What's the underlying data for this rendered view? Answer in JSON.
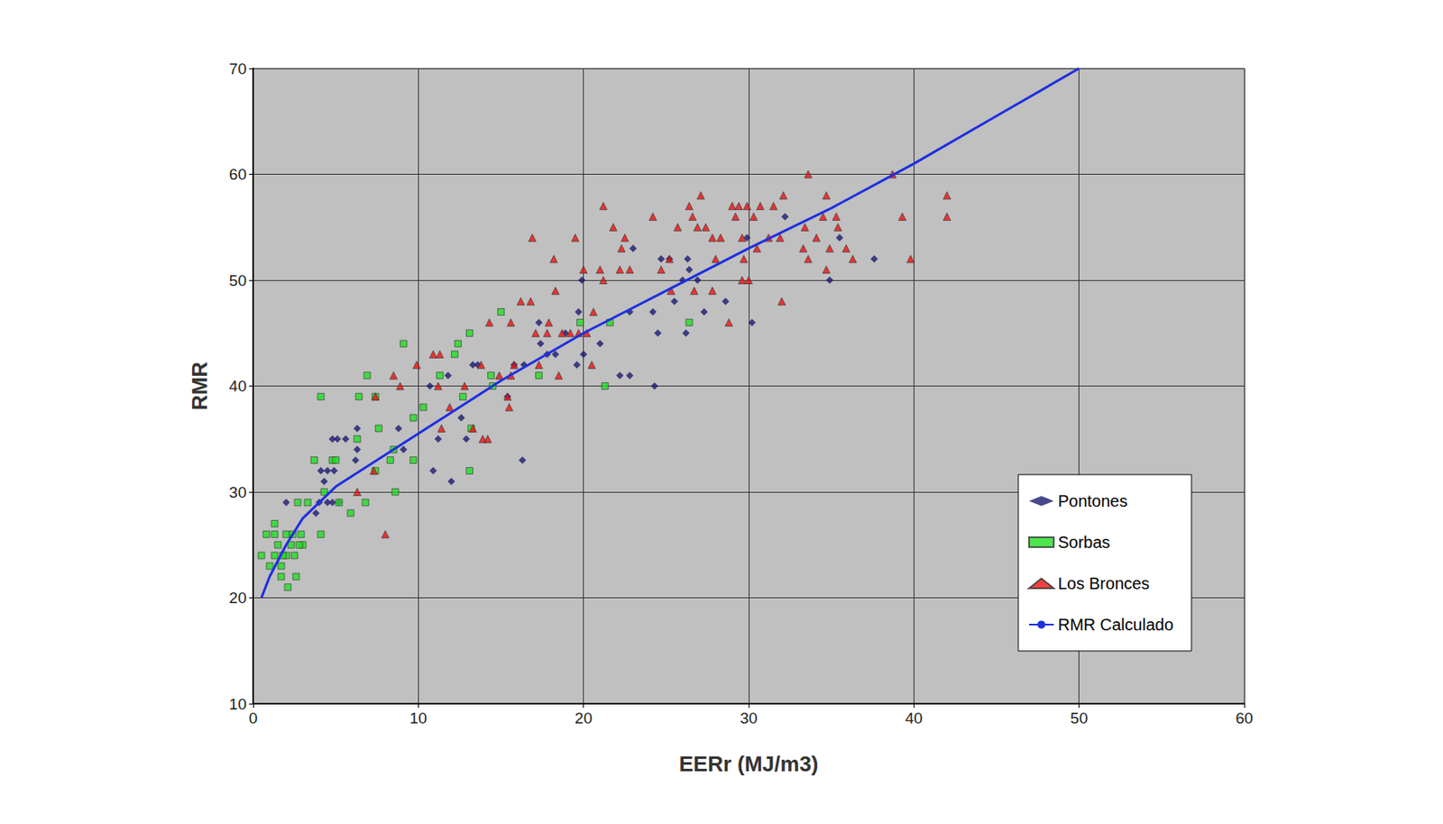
{
  "chart_data": {
    "type": "scatter",
    "x_label": "EERr (MJ/m3)",
    "y_label": "RMR",
    "xlim": [
      0,
      60
    ],
    "xticks": [
      0,
      10,
      20,
      30,
      40,
      50,
      60
    ],
    "ylim": [
      10,
      70
    ],
    "yticks": [
      10,
      20,
      30,
      40,
      50,
      60,
      70
    ],
    "grid": true,
    "legend": "lower right",
    "series": [
      {
        "name": "Pontones",
        "color": "#1a1a6e",
        "marker": "diamond",
        "x": [
          2,
          3.8,
          4,
          4.1,
          4.3,
          4.5,
          4.5,
          4.8,
          4.8,
          4.9,
          5.1,
          5.2,
          5.6,
          6.2,
          6.3,
          6.3,
          8.8,
          9.1,
          10.7,
          10.9,
          11.2,
          11.8,
          12,
          12.6,
          12.9,
          13.3,
          13.6,
          15.4,
          16.3,
          16.4,
          17.3,
          17.8,
          18.3,
          18.9,
          19.6,
          19.7,
          19.9,
          20,
          21,
          22.2,
          22.8,
          22.8,
          23,
          24.2,
          24.3,
          24.5,
          24.7,
          25.5,
          25.2,
          26,
          26.2,
          26.3,
          26.4,
          26.9,
          27.3,
          28.6,
          29.9,
          30.2,
          32.2,
          34.9,
          35.5,
          37.6,
          17.4,
          15.8
        ],
        "values": [
          29,
          28,
          29,
          32,
          31,
          32,
          29,
          29,
          35,
          32,
          35,
          29,
          35,
          33,
          36,
          34,
          36,
          34,
          40,
          32,
          35,
          41,
          31,
          37,
          35,
          42,
          42,
          39,
          33,
          42,
          46,
          43,
          43,
          45,
          42,
          47,
          50,
          43,
          44,
          41,
          47,
          41,
          53,
          47,
          40,
          45,
          52,
          48,
          52,
          50,
          45,
          52,
          51,
          50,
          47,
          48,
          54,
          46,
          56,
          50,
          54,
          52,
          44,
          42
        ]
      },
      {
        "name": "Sorbas",
        "color": "#22dd22",
        "marker": "square",
        "x": [
          0.5,
          0.8,
          1.3,
          1.3,
          1.3,
          1.5,
          1.7,
          1.7,
          2,
          2,
          2.1,
          2.3,
          2.4,
          2.5,
          2.6,
          2.7,
          2.9,
          3,
          3.3,
          3.7,
          4.1,
          4.1,
          4.3,
          4.8,
          5,
          5.2,
          5.9,
          6.3,
          6.4,
          6.8,
          6.9,
          7.4,
          7.4,
          7.6,
          8.3,
          8.5,
          8.6,
          9.1,
          9.7,
          9.7,
          10.3,
          11.3,
          12.2,
          12.4,
          12.7,
          13.1,
          13.2,
          13.1,
          14.4,
          14.5,
          15,
          17.3,
          19.8,
          21.3,
          21.6,
          26.4,
          1.8,
          2.8,
          1
        ],
        "values": [
          24,
          26,
          27,
          26,
          24,
          25,
          22,
          23,
          24,
          26,
          21,
          25,
          26,
          24,
          22,
          29,
          26,
          25,
          29,
          33,
          39,
          26,
          30,
          33,
          33,
          29,
          28,
          35,
          39,
          29,
          41,
          39,
          32,
          36,
          33,
          34,
          30,
          44,
          37,
          33,
          38,
          41,
          43,
          44,
          39,
          45,
          36,
          32,
          41,
          40,
          47,
          41,
          46,
          40,
          46,
          46,
          24,
          25,
          23
        ]
      },
      {
        "name": "Los Bronces",
        "color": "#ee1111",
        "marker": "triangle",
        "x": [
          6.3,
          7.3,
          7.4,
          8,
          8.5,
          8.9,
          9.9,
          10.9,
          11.2,
          11.3,
          11.4,
          11.9,
          12.8,
          13.3,
          13.8,
          13.9,
          14.2,
          14.3,
          14.9,
          15.4,
          15.5,
          15.6,
          15.6,
          15.8,
          16.2,
          16.9,
          16.8,
          17.1,
          17.3,
          17.8,
          17.9,
          18.2,
          18.3,
          18.5,
          18.7,
          19.2,
          19.5,
          19.7,
          20,
          20.2,
          20.5,
          20.6,
          21,
          21.2,
          21.2,
          21.8,
          22.2,
          22.3,
          22.5,
          22.8,
          24.2,
          24.7,
          25.2,
          25.3,
          25.7,
          26.4,
          26.6,
          26.7,
          27.1,
          27.4,
          27.8,
          28,
          28.3,
          28.8,
          29,
          29.2,
          29.4,
          29.6,
          29.6,
          29.7,
          29.9,
          30,
          30.3,
          30.5,
          30.7,
          31.2,
          31.5,
          31.9,
          32,
          32.1,
          33.3,
          33.6,
          33.4,
          33.6,
          34.1,
          34.5,
          34.7,
          34.7,
          34.9,
          35.3,
          35.4,
          35.9,
          36.3,
          38.7,
          39.3,
          39.8,
          42,
          42,
          26.9,
          27.8
        ],
        "values": [
          30,
          32,
          39,
          26,
          41,
          40,
          42,
          43,
          40,
          43,
          36,
          38,
          40,
          36,
          42,
          35,
          35,
          46,
          41,
          39,
          38,
          41,
          46,
          42,
          48,
          54,
          48,
          45,
          42,
          45,
          46,
          52,
          49,
          41,
          45,
          45,
          54,
          45,
          51,
          45,
          42,
          47,
          51,
          57,
          50,
          55,
          51,
          53,
          54,
          51,
          56,
          51,
          52,
          49,
          55,
          57,
          56,
          49,
          58,
          55,
          49,
          52,
          54,
          46,
          57,
          56,
          57,
          50,
          54,
          52,
          57,
          50,
          56,
          53,
          57,
          54,
          57,
          54,
          48,
          58,
          53,
          60,
          55,
          52,
          54,
          56,
          58,
          51,
          53,
          56,
          55,
          53,
          52,
          60,
          56,
          52,
          58,
          56,
          55,
          54
        ]
      },
      {
        "name": "RMR Calculado",
        "color": "#1f2fe0",
        "type": "line",
        "line_style": "solid",
        "x": [
          0.5,
          1,
          2,
          3,
          5,
          10,
          15,
          20,
          25,
          30,
          35,
          40,
          45,
          50
        ],
        "values": [
          20,
          22,
          25,
          27.5,
          30.5,
          35.5,
          40.5,
          45,
          49,
          53,
          56.8,
          61,
          65.5,
          70
        ]
      }
    ]
  }
}
